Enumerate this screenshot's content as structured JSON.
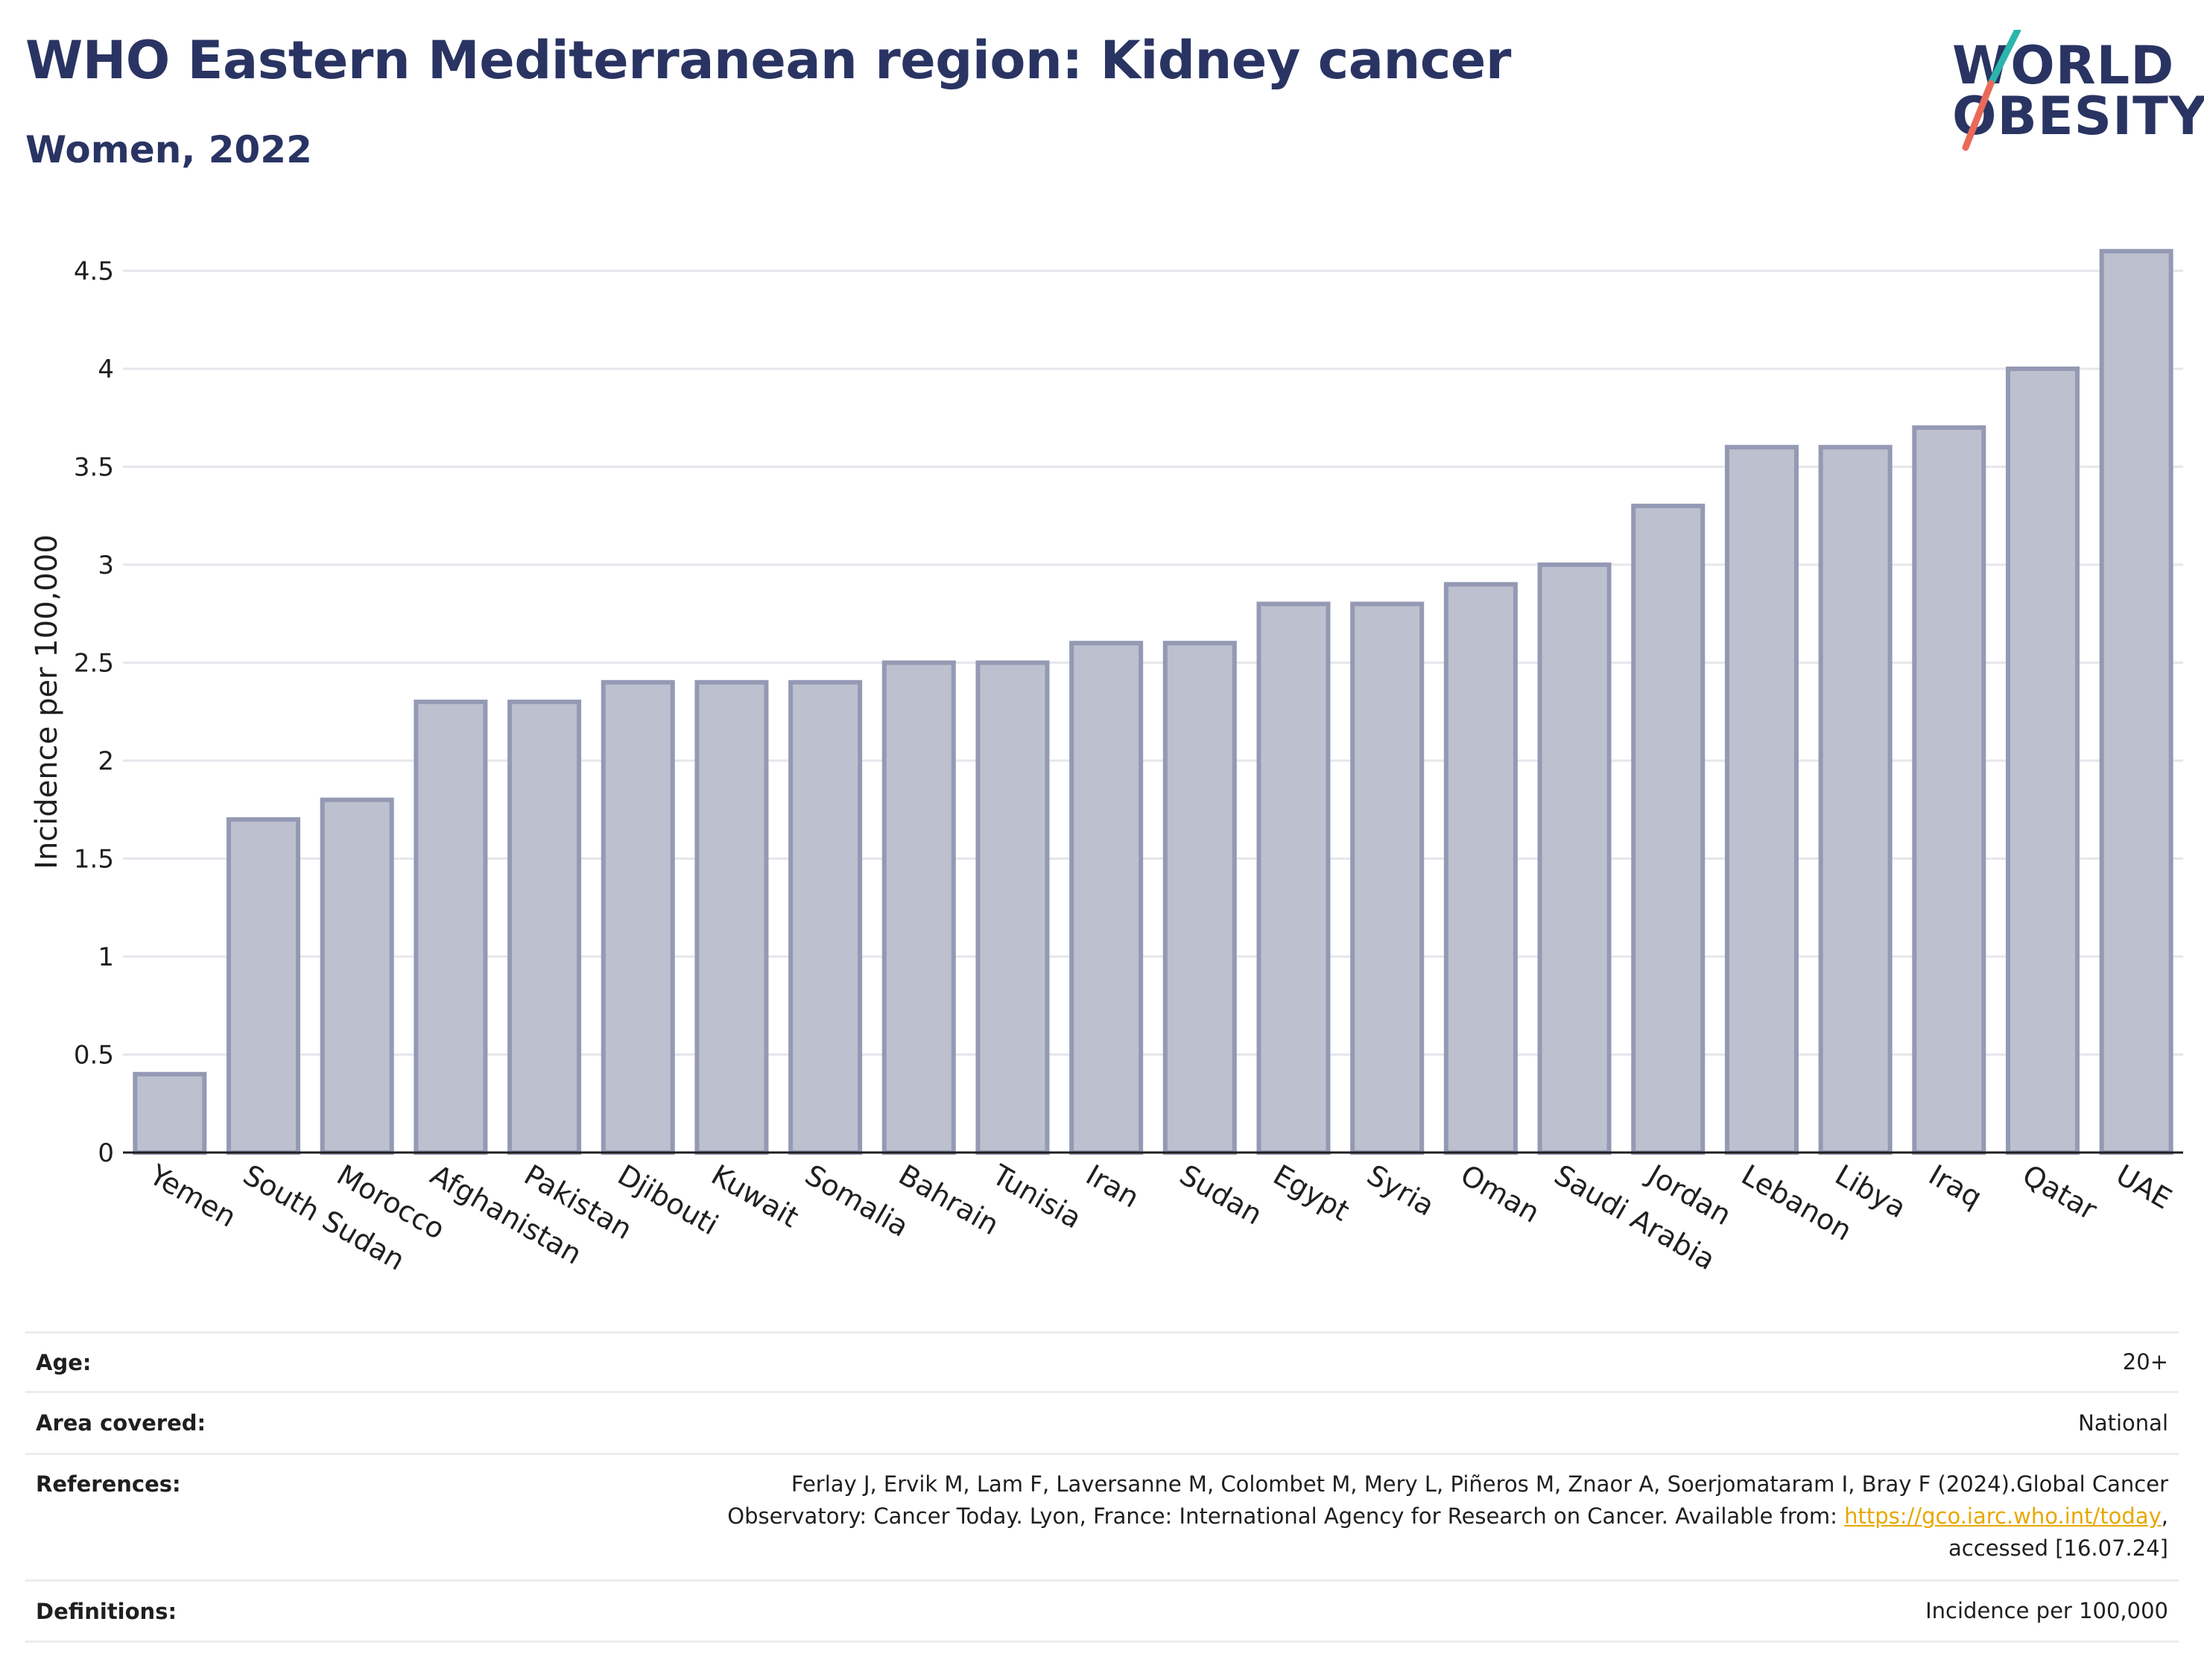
{
  "header": {
    "title": "WHO Eastern Mediterranean region: Kidney cancer",
    "subtitle": "Women, 2022"
  },
  "logo": {
    "line1": "WORLD",
    "line2": "OBESITY",
    "colors": {
      "text": "#2a3463",
      "slash_top": "#2bb5ad",
      "slash_bottom": "#ea6a59"
    }
  },
  "chart_data": {
    "type": "bar",
    "title": "",
    "xlabel": "",
    "ylabel": "Incidence per 100,000",
    "ylim": [
      0,
      4.75
    ],
    "yticks": [
      0,
      0.5,
      1,
      1.5,
      2,
      2.5,
      3,
      3.5,
      4,
      4.5
    ],
    "ytick_labels": [
      "0",
      "0.5",
      "1",
      "1.5",
      "2",
      "2.5",
      "3",
      "3.5",
      "4",
      "4.5"
    ],
    "grid": true,
    "legend": "none",
    "bar_fill": "#bdc0ce",
    "bar_stroke": "#9499b4",
    "categories": [
      "Yemen",
      "South Sudan",
      "Morocco",
      "Afghanistan",
      "Pakistan",
      "Djibouti",
      "Kuwait",
      "Somalia",
      "Bahrain",
      "Tunisia",
      "Iran",
      "Sudan",
      "Egypt",
      "Syria",
      "Oman",
      "Saudi Arabia",
      "Jordan",
      "Lebanon",
      "Libya",
      "Iraq",
      "Qatar",
      "UAE"
    ],
    "values": [
      0.4,
      1.7,
      1.8,
      2.3,
      2.3,
      2.4,
      2.4,
      2.4,
      2.5,
      2.5,
      2.6,
      2.6,
      2.8,
      2.8,
      2.9,
      3.0,
      3.3,
      3.6,
      3.6,
      3.7,
      4.0,
      4.6
    ]
  },
  "metadata": {
    "age_label": "Age:",
    "age_value": "20+",
    "area_label": "Area covered:",
    "area_value": "National",
    "references_label": "References:",
    "references_text_1": "Ferlay J, Ervik M, Lam F, Laversanne M, Colombet M, Mery L, Piñeros M, Znaor A, Soerjomataram I, Bray F (2024).Global Cancer",
    "references_text_2": "Observatory: Cancer Today. Lyon, France: International Agency for Research on Cancer. Available from: ",
    "references_link": "https://gco.iarc.who.int/today",
    "references_text_3": ",",
    "references_text_4": "accessed [16.07.24]",
    "definitions_label": "Definitions:",
    "definitions_value": "Incidence per 100,000"
  }
}
